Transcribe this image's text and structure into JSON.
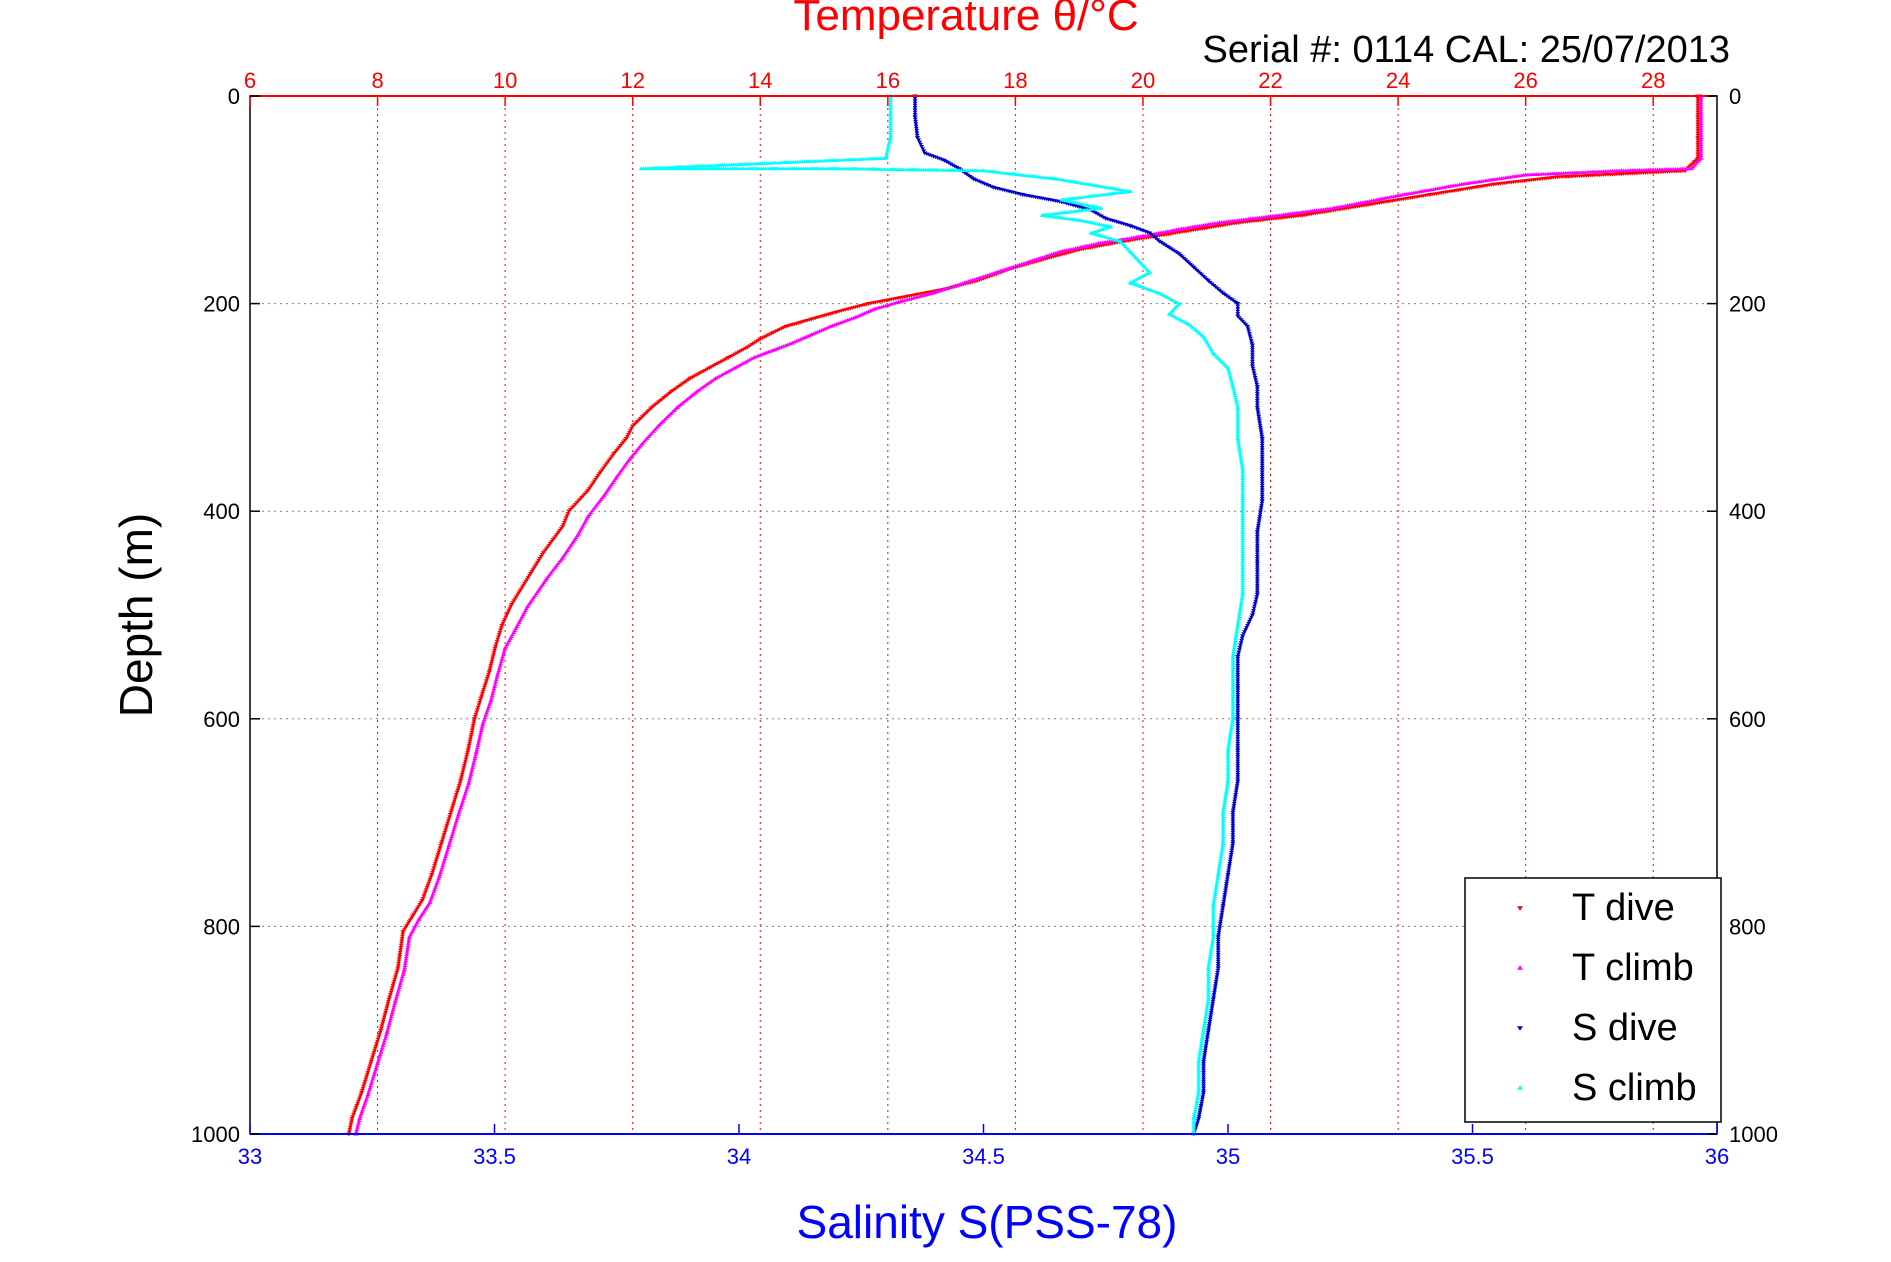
{
  "chart_data": {
    "type": "scatter",
    "title": "Temperature θ/°C",
    "subtitle": "Serial #: 0114  CAL: 25/07/2013",
    "ylabel": "Depth (m)",
    "xlabel_bottom": "Salinity S(PSS-78)",
    "ylim": [
      0,
      1000
    ],
    "y_reversed": true,
    "y_ticks": [
      0,
      200,
      400,
      600,
      800,
      1000
    ],
    "x_top": {
      "range": [
        6,
        29
      ],
      "ticks": [
        6,
        8,
        10,
        12,
        14,
        16,
        18,
        20,
        22,
        24,
        26,
        28
      ]
    },
    "x_bottom": {
      "range": [
        33,
        36
      ],
      "ticks": [
        33,
        33.5,
        34,
        34.5,
        35,
        35.5,
        36
      ]
    },
    "legend_position": "bottom-right",
    "grid": {
      "vertical": "top-axis ticks",
      "horizontal": "y ticks"
    },
    "colors": {
      "title": "#ff0000",
      "top_axis": "#ff0000",
      "bottom_axis": "#0000ff",
      "grid_vertical": "#ff0000",
      "grid_horizontal": "#808080"
    },
    "series": [
      {
        "name": "T dive",
        "axis": "top",
        "color": "#ff0000",
        "marker": "triangle-down",
        "points": [
          [
            28.7,
            0
          ],
          [
            28.7,
            20
          ],
          [
            28.7,
            40
          ],
          [
            28.7,
            60
          ],
          [
            28.5,
            72
          ],
          [
            27.5,
            75
          ],
          [
            26.5,
            78
          ],
          [
            25.5,
            85
          ],
          [
            24.5,
            95
          ],
          [
            23.5,
            105
          ],
          [
            22.5,
            115
          ],
          [
            21.5,
            122
          ],
          [
            21.0,
            127
          ],
          [
            20.4,
            133
          ],
          [
            19.7,
            140
          ],
          [
            19.0,
            148
          ],
          [
            18.4,
            158
          ],
          [
            17.9,
            167
          ],
          [
            17.4,
            178
          ],
          [
            16.9,
            186
          ],
          [
            16.3,
            193
          ],
          [
            15.7,
            200
          ],
          [
            15.2,
            208
          ],
          [
            14.8,
            215
          ],
          [
            14.4,
            222
          ],
          [
            14.2,
            228
          ],
          [
            14.0,
            234
          ],
          [
            13.8,
            242
          ],
          [
            13.5,
            252
          ],
          [
            13.2,
            262
          ],
          [
            12.9,
            272
          ],
          [
            12.6,
            285
          ],
          [
            12.3,
            300
          ],
          [
            12.0,
            318
          ],
          [
            11.9,
            330
          ],
          [
            11.7,
            345
          ],
          [
            11.5,
            362
          ],
          [
            11.3,
            380
          ],
          [
            11.0,
            400
          ],
          [
            10.9,
            415
          ],
          [
            10.6,
            440
          ],
          [
            10.4,
            460
          ],
          [
            10.1,
            490
          ],
          [
            9.95,
            510
          ],
          [
            9.85,
            530
          ],
          [
            9.75,
            555
          ],
          [
            9.62,
            580
          ],
          [
            9.52,
            600
          ],
          [
            9.42,
            630
          ],
          [
            9.3,
            660
          ],
          [
            9.15,
            690
          ],
          [
            9.0,
            720
          ],
          [
            8.85,
            750
          ],
          [
            8.7,
            775
          ],
          [
            8.55,
            790
          ],
          [
            8.4,
            805
          ],
          [
            8.32,
            840
          ],
          [
            8.18,
            870
          ],
          [
            8.05,
            900
          ],
          [
            7.9,
            930
          ],
          [
            7.75,
            960
          ],
          [
            7.6,
            985
          ],
          [
            7.55,
            1000
          ]
        ]
      },
      {
        "name": "T climb",
        "axis": "top",
        "color": "#ff00ff",
        "marker": "triangle-up",
        "points": [
          [
            28.75,
            0
          ],
          [
            28.75,
            20
          ],
          [
            28.75,
            40
          ],
          [
            28.75,
            60
          ],
          [
            28.6,
            70
          ],
          [
            27.5,
            72
          ],
          [
            26.0,
            76
          ],
          [
            25.0,
            85
          ],
          [
            24.0,
            96
          ],
          [
            23.0,
            108
          ],
          [
            22.0,
            116
          ],
          [
            21.2,
            122
          ],
          [
            20.6,
            128
          ],
          [
            20.0,
            135
          ],
          [
            19.3,
            142
          ],
          [
            18.7,
            150
          ],
          [
            18.2,
            160
          ],
          [
            17.7,
            170
          ],
          [
            17.2,
            180
          ],
          [
            16.7,
            190
          ],
          [
            16.2,
            198
          ],
          [
            15.8,
            205
          ],
          [
            15.5,
            213
          ],
          [
            15.1,
            222
          ],
          [
            14.8,
            230
          ],
          [
            14.5,
            238
          ],
          [
            14.2,
            245
          ],
          [
            13.9,
            252
          ],
          [
            13.6,
            262
          ],
          [
            13.3,
            272
          ],
          [
            13.0,
            285
          ],
          [
            12.7,
            300
          ],
          [
            12.4,
            318
          ],
          [
            12.15,
            335
          ],
          [
            11.95,
            350
          ],
          [
            11.75,
            367
          ],
          [
            11.55,
            385
          ],
          [
            11.3,
            405
          ],
          [
            11.15,
            422
          ],
          [
            10.9,
            445
          ],
          [
            10.65,
            465
          ],
          [
            10.35,
            492
          ],
          [
            10.15,
            515
          ],
          [
            10.0,
            532
          ],
          [
            9.88,
            558
          ],
          [
            9.78,
            582
          ],
          [
            9.65,
            605
          ],
          [
            9.55,
            632
          ],
          [
            9.43,
            662
          ],
          [
            9.27,
            692
          ],
          [
            9.12,
            722
          ],
          [
            8.97,
            752
          ],
          [
            8.82,
            777
          ],
          [
            8.65,
            793
          ],
          [
            8.5,
            810
          ],
          [
            8.42,
            842
          ],
          [
            8.28,
            872
          ],
          [
            8.15,
            902
          ],
          [
            8.0,
            932
          ],
          [
            7.85,
            962
          ],
          [
            7.72,
            985
          ],
          [
            7.66,
            1000
          ]
        ]
      },
      {
        "name": "S dive",
        "axis": "bottom",
        "color": "#0000cd",
        "marker": "triangle-down",
        "points": [
          [
            34.36,
            0
          ],
          [
            34.36,
            20
          ],
          [
            34.365,
            40
          ],
          [
            34.38,
            55
          ],
          [
            34.42,
            62
          ],
          [
            34.45,
            70
          ],
          [
            34.48,
            80
          ],
          [
            34.52,
            88
          ],
          [
            34.58,
            95
          ],
          [
            34.66,
            102
          ],
          [
            34.72,
            110
          ],
          [
            34.75,
            118
          ],
          [
            34.8,
            125
          ],
          [
            34.84,
            132
          ],
          [
            34.86,
            140
          ],
          [
            34.9,
            152
          ],
          [
            34.93,
            165
          ],
          [
            34.96,
            178
          ],
          [
            34.99,
            190
          ],
          [
            35.02,
            200
          ],
          [
            35.02,
            212
          ],
          [
            35.04,
            222
          ],
          [
            35.05,
            240
          ],
          [
            35.05,
            260
          ],
          [
            35.06,
            280
          ],
          [
            35.06,
            300
          ],
          [
            35.07,
            330
          ],
          [
            35.07,
            360
          ],
          [
            35.07,
            390
          ],
          [
            35.06,
            420
          ],
          [
            35.06,
            450
          ],
          [
            35.06,
            480
          ],
          [
            35.05,
            500
          ],
          [
            35.03,
            520
          ],
          [
            35.02,
            540
          ],
          [
            35.02,
            570
          ],
          [
            35.02,
            600
          ],
          [
            35.02,
            630
          ],
          [
            35.02,
            660
          ],
          [
            35.01,
            690
          ],
          [
            35.01,
            720
          ],
          [
            35.0,
            750
          ],
          [
            34.99,
            780
          ],
          [
            34.98,
            810
          ],
          [
            34.98,
            840
          ],
          [
            34.97,
            870
          ],
          [
            34.96,
            900
          ],
          [
            34.95,
            930
          ],
          [
            34.95,
            960
          ],
          [
            34.94,
            985
          ],
          [
            34.93,
            1000
          ]
        ]
      },
      {
        "name": "S climb",
        "axis": "bottom",
        "color": "#00ffff",
        "marker": "triangle-up",
        "points": [
          [
            34.31,
            0
          ],
          [
            34.31,
            20
          ],
          [
            34.31,
            40
          ],
          [
            34.3,
            60
          ],
          [
            33.8,
            70
          ],
          [
            34.2,
            70
          ],
          [
            34.5,
            72
          ],
          [
            34.65,
            80
          ],
          [
            34.75,
            88
          ],
          [
            34.8,
            92
          ],
          [
            34.66,
            100
          ],
          [
            34.74,
            108
          ],
          [
            34.62,
            115
          ],
          [
            34.7,
            120
          ],
          [
            34.76,
            126
          ],
          [
            34.72,
            132
          ],
          [
            34.78,
            140
          ],
          [
            34.8,
            150
          ],
          [
            34.82,
            160
          ],
          [
            34.84,
            170
          ],
          [
            34.8,
            180
          ],
          [
            34.86,
            190
          ],
          [
            34.9,
            200
          ],
          [
            34.88,
            210
          ],
          [
            34.92,
            220
          ],
          [
            34.95,
            232
          ],
          [
            34.97,
            248
          ],
          [
            35.0,
            262
          ],
          [
            35.01,
            280
          ],
          [
            35.02,
            300
          ],
          [
            35.02,
            330
          ],
          [
            35.03,
            360
          ],
          [
            35.03,
            390
          ],
          [
            35.03,
            420
          ],
          [
            35.03,
            450
          ],
          [
            35.03,
            480
          ],
          [
            35.02,
            510
          ],
          [
            35.01,
            540
          ],
          [
            35.01,
            570
          ],
          [
            35.01,
            600
          ],
          [
            35.0,
            630
          ],
          [
            35.0,
            660
          ],
          [
            34.99,
            690
          ],
          [
            34.99,
            720
          ],
          [
            34.98,
            750
          ],
          [
            34.97,
            780
          ],
          [
            34.97,
            810
          ],
          [
            34.96,
            840
          ],
          [
            34.96,
            870
          ],
          [
            34.95,
            900
          ],
          [
            34.94,
            930
          ],
          [
            34.94,
            960
          ],
          [
            34.93,
            985
          ],
          [
            34.93,
            1000
          ]
        ]
      }
    ]
  }
}
